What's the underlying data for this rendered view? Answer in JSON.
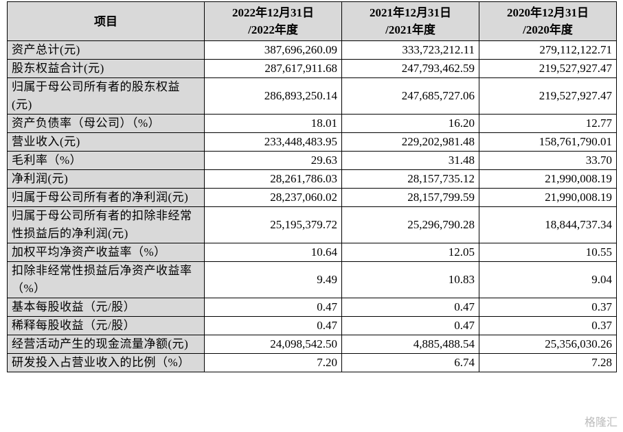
{
  "table": {
    "header": [
      "项目",
      [
        "2022年12月31日",
        "/2022年度"
      ],
      [
        "2021年12月31日",
        "/2021年度"
      ],
      [
        "2020年12月31日",
        "/2020年度"
      ]
    ],
    "rows": [
      [
        "资产总计(元)",
        "387,696,260.09",
        "333,723,212.11",
        "279,112,122.71"
      ],
      [
        "股东权益合计(元)",
        "287,617,911.68",
        "247,793,462.59",
        "219,527,927.47"
      ],
      [
        "归属于母公司所有者的股东权益(元)",
        "286,893,250.14",
        "247,685,727.06",
        "219,527,927.47"
      ],
      [
        "资产负债率（母公司）（%）",
        "18.01",
        "16.20",
        "12.77"
      ],
      [
        "营业收入(元)",
        "233,448,483.95",
        "229,202,981.48",
        "158,761,790.01"
      ],
      [
        "毛利率（%）",
        "29.63",
        "31.48",
        "33.70"
      ],
      [
        "净利润(元)",
        "28,261,786.03",
        "28,157,735.12",
        "21,990,008.19"
      ],
      [
        "归属于母公司所有者的净利润(元)",
        "28,237,060.02",
        "28,157,799.59",
        "21,990,008.19"
      ],
      [
        "归属于母公司所有者的扣除非经常性损益后的净利润(元)",
        "25,195,379.72",
        "25,296,790.28",
        "18,844,737.34"
      ],
      [
        "加权平均净资产收益率（%）",
        "10.64",
        "12.05",
        "10.55"
      ],
      [
        "扣除非经常性损益后净资产收益率（%）",
        "9.49",
        "10.83",
        "9.04"
      ],
      [
        "基本每股收益（元/股）",
        "0.47",
        "0.47",
        "0.37"
      ],
      [
        "稀释每股收益（元/股）",
        "0.47",
        "0.47",
        "0.37"
      ],
      [
        "经营活动产生的现金流量净额(元)",
        "24,098,542.50",
        "4,885,488.54",
        "25,356,030.26"
      ],
      [
        "研发投入占营业收入的比例（%）",
        "7.20",
        "6.74",
        "7.28"
      ]
    ]
  },
  "watermark": "格隆汇"
}
